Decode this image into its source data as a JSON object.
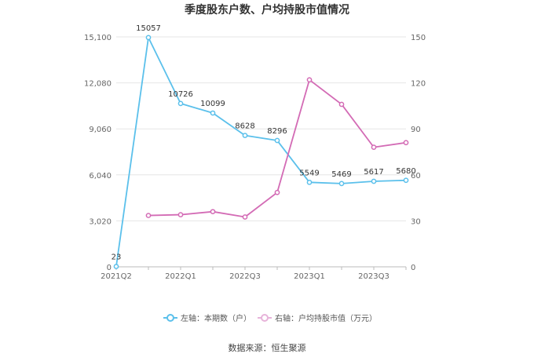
{
  "chart_data": {
    "type": "line",
    "title": "季度股东户数、户均持股市值情况",
    "source": "数据来源：恒生聚源",
    "categories": [
      "2021Q2",
      "2021Q3",
      "2022Q1",
      "2022Q2",
      "2022Q3",
      "2022Q4",
      "2023Q1",
      "2023Q2",
      "2023Q3",
      "2023Q4"
    ],
    "x_tick_labels": [
      "2021Q2",
      "2022Q1",
      "2022Q3",
      "2023Q1",
      "2023Q3"
    ],
    "left_axis": {
      "ylim": [
        0,
        15100
      ],
      "ticks": [
        0,
        3020,
        6040,
        9060,
        12080,
        15100
      ],
      "tick_labels": [
        "0",
        "3,020",
        "6,040",
        "9,060",
        "12,080",
        "15,100"
      ]
    },
    "right_axis": {
      "ylim": [
        0,
        150
      ],
      "ticks": [
        0,
        30,
        60,
        90,
        120,
        150
      ],
      "tick_labels": [
        "0",
        "30",
        "60",
        "90",
        "120",
        "150"
      ]
    },
    "series": [
      {
        "name": "左轴：本期数（户）",
        "axis": "left",
        "color": "#5bc0eb",
        "values": [
          23,
          15057,
          10726,
          10099,
          8628,
          8296,
          5549,
          5469,
          5617,
          5680
        ],
        "labels": [
          "23",
          "15057",
          "10726",
          "10099",
          "8628",
          "8296",
          "5549",
          "5469",
          "5617",
          "5680"
        ]
      },
      {
        "name": "右轴：户均持股市值（万元）",
        "axis": "right",
        "color": "#d36bb5",
        "values": [
          null,
          33.5,
          34.0,
          36.0,
          32.5,
          48.5,
          122.0,
          106.0,
          78.0,
          81.0
        ]
      }
    ],
    "grid": true,
    "legend_position": "bottom"
  }
}
